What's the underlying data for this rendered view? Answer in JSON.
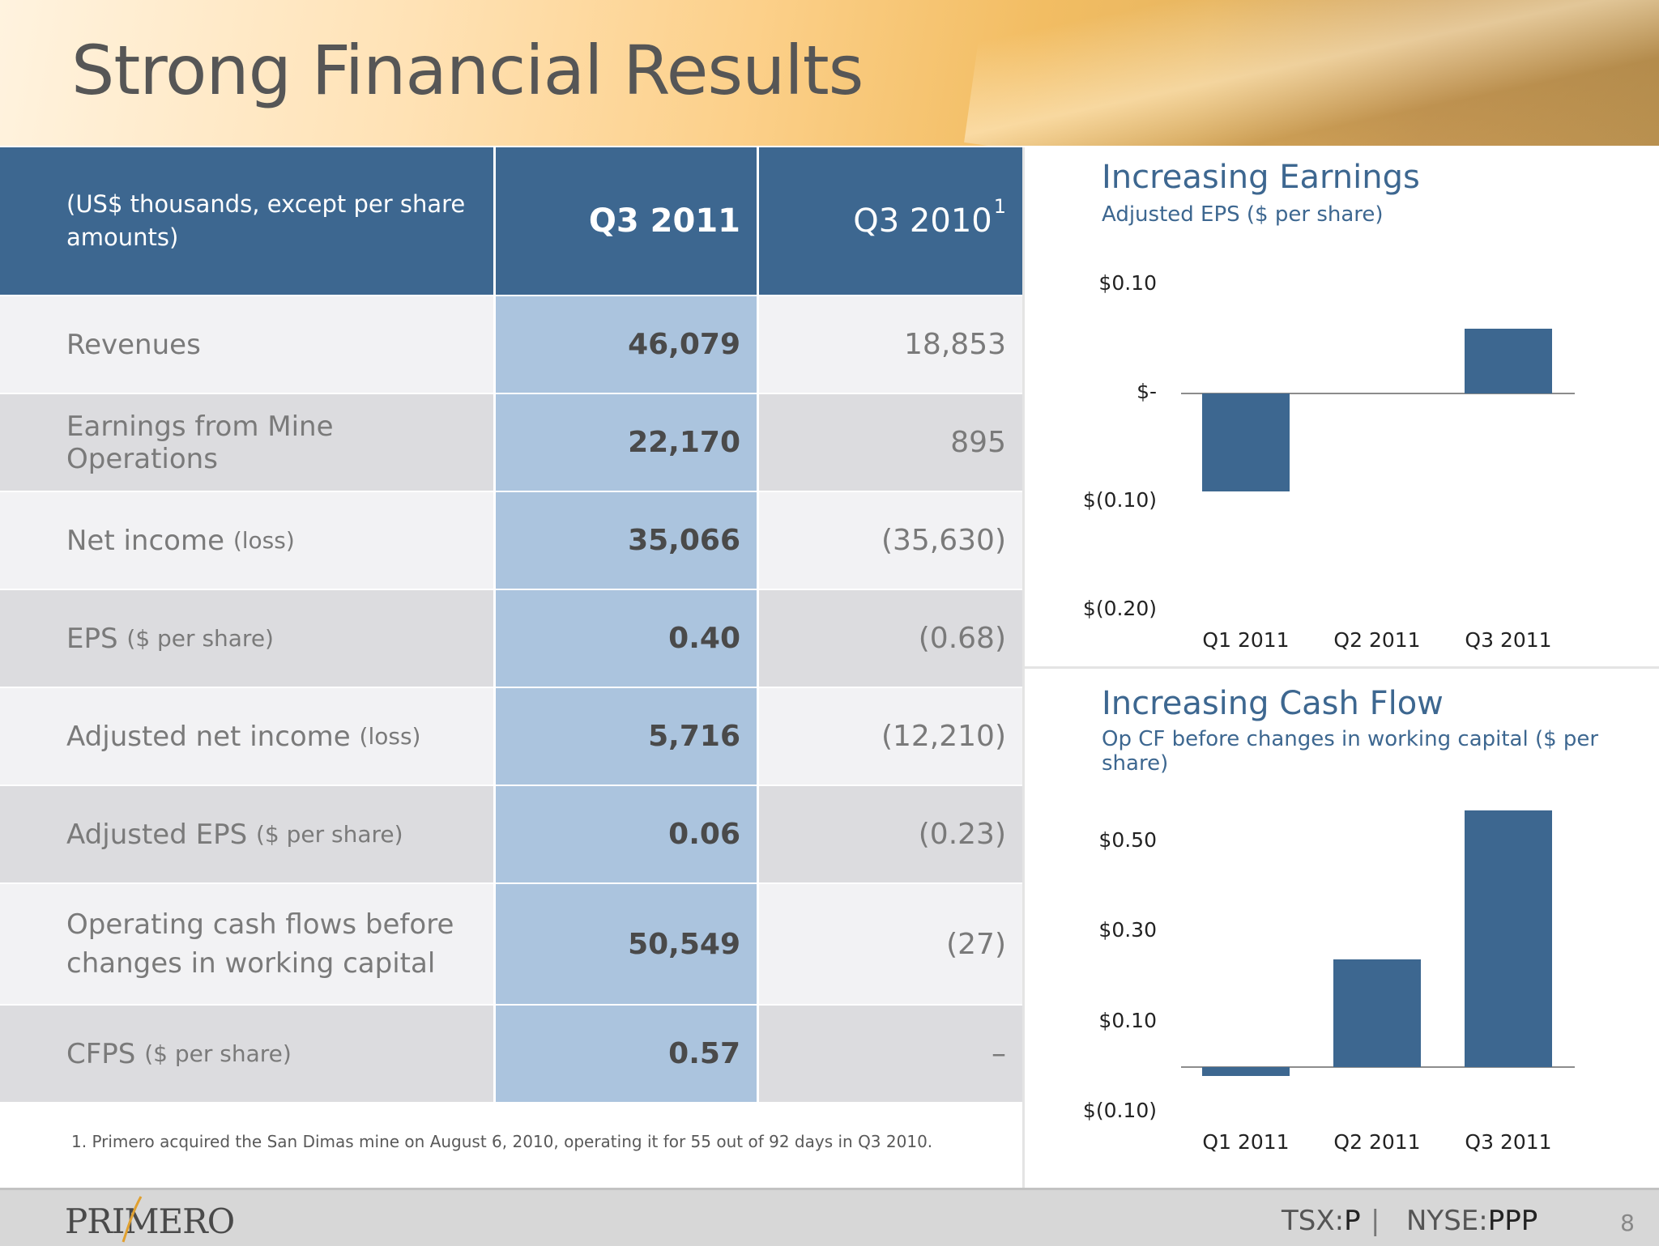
{
  "title": "Strong Financial Results",
  "table": {
    "header": {
      "label": "(US$ thousands, except per share amounts)",
      "col1": "Q3 2011",
      "col2": "Q3 2010",
      "col2_sup": "1"
    },
    "rows": [
      {
        "label": "Revenues",
        "qualifier": "",
        "q3_2011": "46,079",
        "q3_2010": "18,853"
      },
      {
        "label": "Earnings from Mine Operations",
        "qualifier": "",
        "q3_2011": "22,170",
        "q3_2010": "895"
      },
      {
        "label": "Net income",
        "qualifier": "(loss)",
        "q3_2011": "35,066",
        "q3_2010": "(35,630)"
      },
      {
        "label": "EPS",
        "qualifier": "($ per share)",
        "q3_2011": "0.40",
        "q3_2010": "(0.68)"
      },
      {
        "label": "Adjusted net income",
        "qualifier": "(loss)",
        "q3_2011": "5,716",
        "q3_2010": "(12,210)"
      },
      {
        "label": "Adjusted EPS",
        "qualifier": "($ per share)",
        "q3_2011": "0.06",
        "q3_2010": "(0.23)"
      },
      {
        "label": "Operating cash flows before changes in working capital",
        "qualifier": "",
        "q3_2011": "50,549",
        "q3_2010": "(27)"
      },
      {
        "label": "CFPS",
        "qualifier": "($ per share)",
        "q3_2011": "0.57",
        "q3_2010": "–"
      }
    ]
  },
  "footnote": "1. Primero acquired the San Dimas mine on August 6, 2010, operating it for 55 out of 92 days in Q3 2010.",
  "chart_data": [
    {
      "type": "bar",
      "title": "Increasing Earnings",
      "subtitle": "Adjusted EPS ($ per share)",
      "categories": [
        "Q1 2011",
        "Q2 2011",
        "Q3 2011"
      ],
      "values": [
        -0.09,
        0.0,
        0.06
      ],
      "ylim": [
        -0.2,
        0.1
      ],
      "yticks": [
        0.1,
        0.0,
        -0.1,
        -0.2
      ],
      "ytick_labels": [
        "$0.10",
        "$-",
        "$(0.10)",
        "$(0.20)"
      ],
      "color": "#3d6790"
    },
    {
      "type": "bar",
      "title": "Increasing Cash Flow",
      "subtitle": "Op CF before changes in working capital ($ per share)",
      "categories": [
        "Q1 2011",
        "Q2 2011",
        "Q3 2011"
      ],
      "values": [
        -0.02,
        0.24,
        0.57
      ],
      "ylim": [
        -0.1,
        0.5
      ],
      "yticks": [
        0.5,
        0.3,
        0.1,
        -0.1
      ],
      "ytick_labels": [
        "$0.50",
        "$0.30",
        "$0.10",
        "$(0.10)"
      ],
      "color": "#3d6790"
    }
  ],
  "footer": {
    "logo": "PRIMERO",
    "tsx_label": "TSX:",
    "tsx_symbol": "P",
    "separator": "|",
    "nyse_label": "NYSE:",
    "nyse_symbol": "PPP",
    "page": "8"
  }
}
